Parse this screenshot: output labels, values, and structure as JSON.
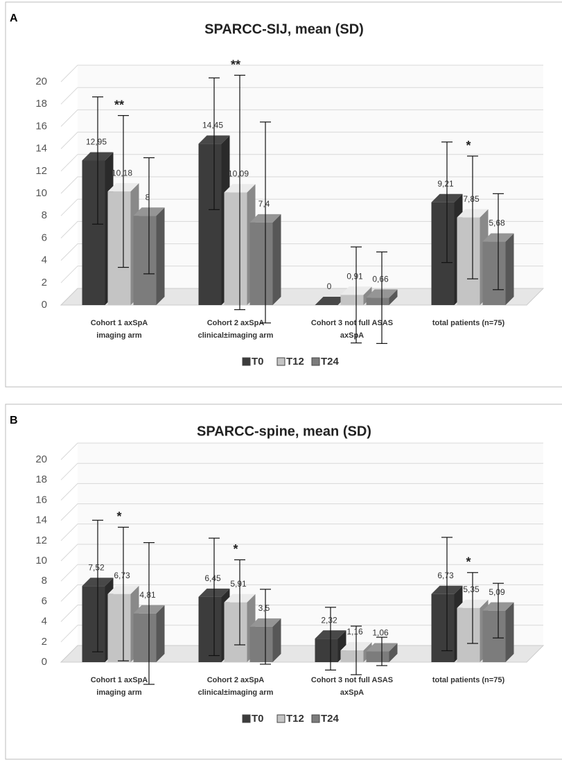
{
  "chart_data": [
    {
      "type": "bar",
      "panel": "A",
      "title": "SPARCC-SIJ, mean (SD)",
      "categories": [
        [
          "Cohort 1  axSpA",
          "imaging arm"
        ],
        [
          "Cohort 2 axSpA",
          "clinical±imaging arm"
        ],
        [
          "Cohort 3 not full ASAS",
          "axSpA"
        ],
        [
          "total patients (n=75)"
        ]
      ],
      "series": [
        {
          "name": "T0",
          "color": "#3c3c3c",
          "values": [
            12.95,
            14.45,
            0,
            9.21
          ],
          "value_labels": [
            "12,95",
            "14,45",
            "0",
            "9,21"
          ],
          "errors": [
            5.7,
            5.9,
            0,
            5.4
          ]
        },
        {
          "name": "T12",
          "color": "#c4c4c4",
          "values": [
            10.18,
            10.09,
            0.91,
            7.85
          ],
          "value_labels": [
            "10,18",
            "10,09",
            "0,91",
            "7,85"
          ],
          "errors": [
            6.8,
            10.5,
            4.3,
            5.5
          ]
        },
        {
          "name": "T24",
          "color": "#7c7c7c",
          "values": [
            8,
            7.4,
            0.66,
            5.68
          ],
          "value_labels": [
            "8",
            "7,4",
            "0,66",
            "5,68"
          ],
          "errors": [
            5.2,
            9,
            4.1,
            4.3
          ]
        }
      ],
      "annotations": [
        "**",
        "**",
        null,
        "*"
      ],
      "ylim": [
        0,
        20
      ],
      "yticks": [
        0,
        2,
        4,
        6,
        8,
        10,
        12,
        14,
        16,
        18,
        20
      ],
      "grid": true
    },
    {
      "type": "bar",
      "panel": "B",
      "title": "SPARCC-spine, mean (SD)",
      "categories": [
        [
          "Cohort 1  axSpA",
          "imaging arm"
        ],
        [
          "Cohort 2 axSpA",
          "clinical±imaging arm"
        ],
        [
          "Cohort 3 not full ASAS",
          "axSpA"
        ],
        [
          "total patients (n=75)"
        ]
      ],
      "series": [
        {
          "name": "T0",
          "color": "#3c3c3c",
          "values": [
            7.52,
            6.45,
            2.32,
            6.73
          ],
          "value_labels": [
            "7,52",
            "6,45",
            "2,32",
            "6,73"
          ],
          "errors": [
            6.5,
            5.8,
            3.1,
            5.6
          ]
        },
        {
          "name": "T12",
          "color": "#c4c4c4",
          "values": [
            6.73,
            5.91,
            1.16,
            5.35
          ],
          "value_labels": [
            "6,73",
            "5,91",
            "1,16",
            "5,35"
          ],
          "errors": [
            6.6,
            4.2,
            2.4,
            3.5
          ]
        },
        {
          "name": "T24",
          "color": "#7c7c7c",
          "values": [
            4.81,
            3.5,
            1.06,
            5.09
          ],
          "value_labels": [
            "4,81",
            "3,5",
            "1,06",
            "5,09"
          ],
          "errors": [
            7,
            3.7,
            1.4,
            2.7
          ]
        }
      ],
      "annotations": [
        "*",
        "*",
        null,
        "*"
      ],
      "ylim": [
        0,
        20
      ],
      "yticks": [
        0,
        2,
        4,
        6,
        8,
        10,
        12,
        14,
        16,
        18,
        20
      ],
      "grid": true
    }
  ]
}
